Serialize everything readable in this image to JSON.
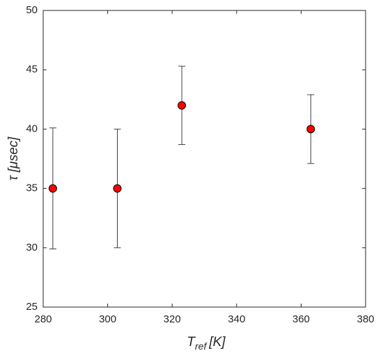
{
  "chart_data": {
    "type": "scatter",
    "xlabel": [
      "T",
      "ref",
      "[K]"
    ],
    "ylabel": [
      "τ",
      "[μsec]"
    ],
    "x": [
      283,
      303,
      323,
      363
    ],
    "series": [
      {
        "color": "#ff0000",
        "values": [
          35,
          35,
          42,
          40
        ],
        "errors": [
          5.1,
          5,
          3.3,
          2.9
        ]
      }
    ],
    "xlim": [
      280,
      380
    ],
    "xticks": [
      280,
      300,
      320,
      340,
      360,
      380
    ],
    "ylim": [
      25,
      50
    ],
    "yticks": [
      25,
      30,
      35,
      40,
      45,
      50
    ],
    "grid": false
  }
}
